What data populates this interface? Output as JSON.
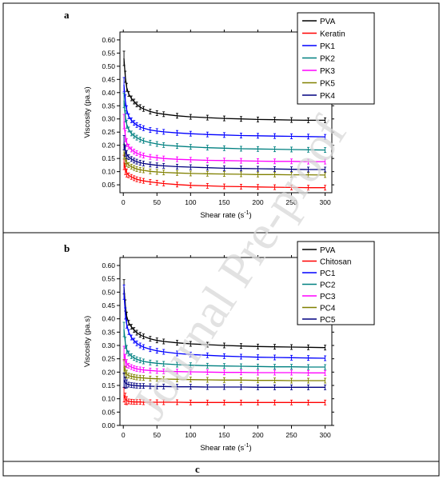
{
  "watermark": "Journal Pre-proof",
  "chart_data": [
    {
      "panel_label": "a",
      "type": "line",
      "xlabel": "Shear rate (s",
      "xlabel_sup": "-1",
      "xlabel_end": ")",
      "ylabel": "Viscosity (pa.s)",
      "xlim": [
        -5,
        310
      ],
      "ylim": [
        0.02,
        0.63
      ],
      "xticks": [
        0,
        50,
        100,
        150,
        200,
        250,
        300
      ],
      "yticks": [
        0.05,
        0.1,
        0.15,
        0.2,
        0.25,
        0.3,
        0.35,
        0.4,
        0.45,
        0.5,
        0.55,
        0.6
      ],
      "ytick_labels": [
        "0.05",
        "0.10",
        "0.15",
        "0.20",
        "0.25",
        "0.30",
        "0.35",
        "0.40",
        "0.45",
        "0.50",
        "0.55",
        "0.60"
      ],
      "legend_position": "top-right",
      "x": [
        1,
        3,
        5,
        8,
        12,
        16,
        20,
        25,
        30,
        40,
        50,
        60,
        80,
        100,
        125,
        150,
        175,
        200,
        225,
        250,
        275,
        300
      ],
      "series": [
        {
          "name": "PVA",
          "color": "#000000",
          "values": [
            0.53,
            0.46,
            0.42,
            0.395,
            0.378,
            0.366,
            0.355,
            0.345,
            0.338,
            0.328,
            0.322,
            0.318,
            0.312,
            0.308,
            0.305,
            0.302,
            0.3,
            0.298,
            0.297,
            0.296,
            0.295,
            0.295
          ]
        },
        {
          "name": "Keratin",
          "color": "#ff0000",
          "values": [
            0.135,
            0.11,
            0.095,
            0.086,
            0.08,
            0.075,
            0.071,
            0.068,
            0.065,
            0.061,
            0.058,
            0.055,
            0.051,
            0.048,
            0.046,
            0.044,
            0.043,
            0.042,
            0.041,
            0.04,
            0.039,
            0.039
          ]
        },
        {
          "name": "PK1",
          "color": "#0000ff",
          "values": [
            0.43,
            0.37,
            0.335,
            0.31,
            0.295,
            0.285,
            0.277,
            0.27,
            0.265,
            0.258,
            0.254,
            0.251,
            0.247,
            0.244,
            0.241,
            0.239,
            0.237,
            0.236,
            0.235,
            0.234,
            0.233,
            0.232
          ]
        },
        {
          "name": "PK2",
          "color": "#008080",
          "values": [
            0.37,
            0.31,
            0.28,
            0.26,
            0.245,
            0.236,
            0.229,
            0.222,
            0.217,
            0.21,
            0.205,
            0.201,
            0.197,
            0.194,
            0.191,
            0.189,
            0.187,
            0.186,
            0.185,
            0.184,
            0.183,
            0.182
          ]
        },
        {
          "name": "PK3",
          "color": "#ff00ff",
          "values": [
            0.29,
            0.235,
            0.21,
            0.195,
            0.184,
            0.176,
            0.17,
            0.165,
            0.161,
            0.156,
            0.153,
            0.15,
            0.147,
            0.145,
            0.143,
            0.142,
            0.141,
            0.14,
            0.139,
            0.139,
            0.138,
            0.138
          ]
        },
        {
          "name": "PK5",
          "color": "#808000",
          "values": [
            0.175,
            0.15,
            0.135,
            0.125,
            0.119,
            0.114,
            0.11,
            0.107,
            0.105,
            0.101,
            0.099,
            0.097,
            0.095,
            0.093,
            0.092,
            0.091,
            0.09,
            0.089,
            0.089,
            0.088,
            0.088,
            0.087
          ]
        },
        {
          "name": "PK4",
          "color": "#000080",
          "values": [
            0.21,
            0.18,
            0.165,
            0.155,
            0.148,
            0.142,
            0.138,
            0.134,
            0.131,
            0.127,
            0.124,
            0.122,
            0.119,
            0.117,
            0.115,
            0.113,
            0.112,
            0.111,
            0.11,
            0.109,
            0.108,
            0.108
          ]
        }
      ]
    },
    {
      "panel_label": "b",
      "type": "line",
      "xlabel": "Shear rate (s",
      "xlabel_sup": "-1",
      "xlabel_end": ")",
      "ylabel": "Viscosity (pa.s)",
      "xlim": [
        -5,
        310
      ],
      "ylim": [
        0,
        0.63
      ],
      "xticks": [
        0,
        50,
        100,
        150,
        200,
        250,
        300
      ],
      "yticks": [
        0.0,
        0.05,
        0.1,
        0.15,
        0.2,
        0.25,
        0.3,
        0.35,
        0.4,
        0.45,
        0.5,
        0.55,
        0.6
      ],
      "ytick_labels": [
        "0.00",
        "0.05",
        "0.10",
        "0.15",
        "0.20",
        "0.25",
        "0.30",
        "0.35",
        "0.40",
        "0.45",
        "0.50",
        "0.55",
        "0.60"
      ],
      "legend_position": "top-right",
      "x": [
        1,
        3,
        5,
        8,
        12,
        16,
        20,
        25,
        30,
        40,
        50,
        60,
        80,
        100,
        125,
        150,
        175,
        200,
        225,
        250,
        275,
        300
      ],
      "series": [
        {
          "name": "PVA",
          "color": "#000000",
          "values": [
            0.52,
            0.45,
            0.41,
            0.385,
            0.37,
            0.358,
            0.348,
            0.34,
            0.334,
            0.325,
            0.319,
            0.315,
            0.31,
            0.306,
            0.303,
            0.3,
            0.298,
            0.296,
            0.295,
            0.294,
            0.293,
            0.292
          ]
        },
        {
          "name": "Chitosan",
          "color": "#ff0000",
          "values": [
            0.115,
            0.1,
            0.093,
            0.09,
            0.089,
            0.088,
            0.088,
            0.088,
            0.087,
            0.087,
            0.087,
            0.087,
            0.087,
            0.086,
            0.086,
            0.086,
            0.086,
            0.086,
            0.086,
            0.086,
            0.086,
            0.086
          ]
        },
        {
          "name": "PC1",
          "color": "#0000ff",
          "values": [
            0.5,
            0.42,
            0.38,
            0.35,
            0.33,
            0.318,
            0.308,
            0.3,
            0.294,
            0.286,
            0.28,
            0.276,
            0.27,
            0.266,
            0.263,
            0.26,
            0.258,
            0.256,
            0.255,
            0.254,
            0.253,
            0.252
          ]
        },
        {
          "name": "PC2",
          "color": "#008080",
          "values": [
            0.36,
            0.31,
            0.285,
            0.27,
            0.26,
            0.253,
            0.248,
            0.244,
            0.24,
            0.236,
            0.233,
            0.231,
            0.228,
            0.226,
            0.224,
            0.223,
            0.222,
            0.221,
            0.22,
            0.22,
            0.219,
            0.219
          ]
        },
        {
          "name": "PC3",
          "color": "#ff00ff",
          "values": [
            0.27,
            0.245,
            0.232,
            0.224,
            0.219,
            0.215,
            0.212,
            0.21,
            0.208,
            0.206,
            0.204,
            0.203,
            0.202,
            0.201,
            0.2,
            0.199,
            0.199,
            0.198,
            0.198,
            0.198,
            0.197,
            0.197
          ]
        },
        {
          "name": "PC4",
          "color": "#808000",
          "values": [
            0.22,
            0.2,
            0.192,
            0.187,
            0.184,
            0.182,
            0.18,
            0.179,
            0.178,
            0.176,
            0.175,
            0.174,
            0.173,
            0.172,
            0.171,
            0.17,
            0.17,
            0.169,
            0.169,
            0.168,
            0.168,
            0.168
          ]
        },
        {
          "name": "PC5",
          "color": "#000080",
          "values": [
            0.17,
            0.16,
            0.156,
            0.153,
            0.151,
            0.15,
            0.149,
            0.148,
            0.148,
            0.147,
            0.146,
            0.146,
            0.145,
            0.145,
            0.144,
            0.144,
            0.144,
            0.143,
            0.143,
            0.143,
            0.143,
            0.143
          ]
        }
      ]
    },
    {
      "panel_label": "c",
      "type": "line"
    }
  ]
}
